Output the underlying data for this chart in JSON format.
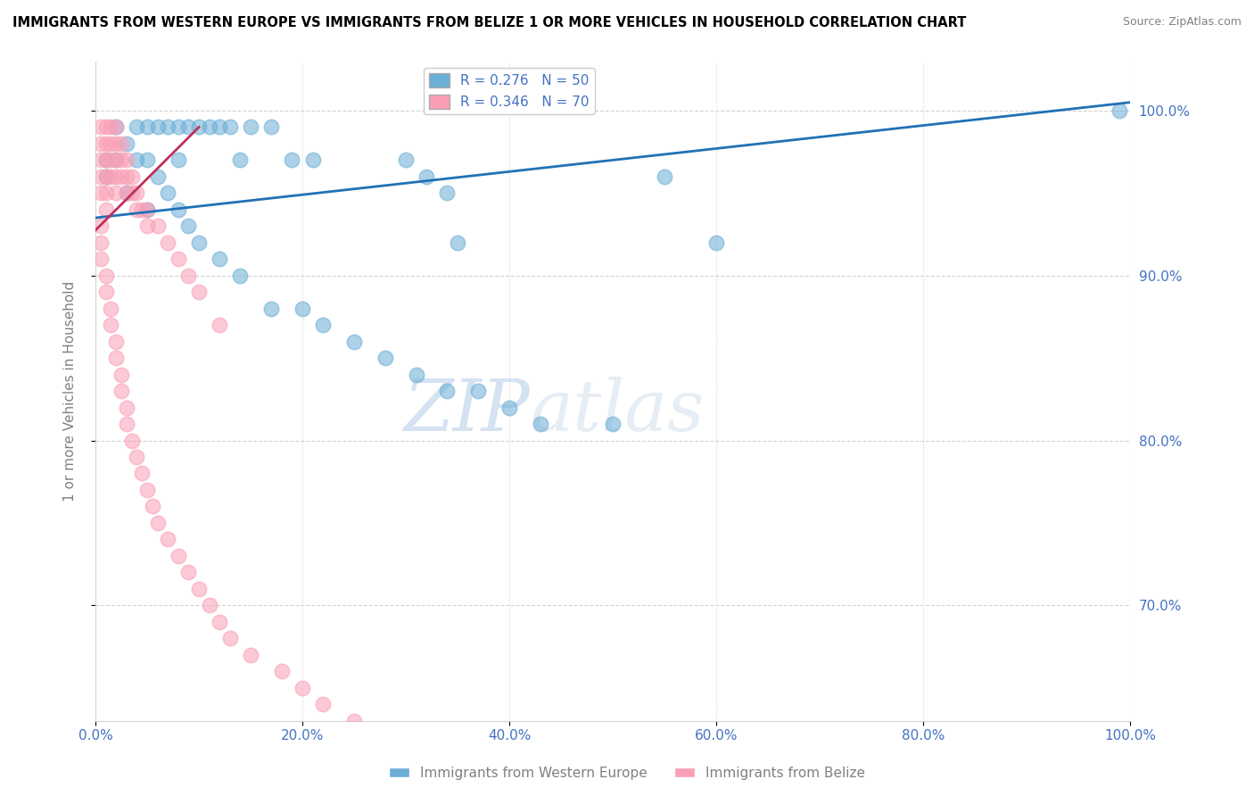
{
  "title": "IMMIGRANTS FROM WESTERN EUROPE VS IMMIGRANTS FROM BELIZE 1 OR MORE VEHICLES IN HOUSEHOLD CORRELATION CHART",
  "source": "Source: ZipAtlas.com",
  "ylabel": "1 or more Vehicles in Household",
  "legend_label1": "Immigrants from Western Europe",
  "legend_label2": "Immigrants from Belize",
  "r1": 0.276,
  "n1": 50,
  "r2": 0.346,
  "n2": 70,
  "color1": "#6baed6",
  "color2": "#fa9fb5",
  "trendline1_color": "#2171b5",
  "trendline2_color": "#c0305a",
  "xlim": [
    0.0,
    1.0
  ],
  "ylim": [
    0.63,
    1.03
  ],
  "xticks": [
    0.0,
    0.2,
    0.4,
    0.6,
    0.8,
    1.0
  ],
  "yticks": [
    0.7,
    0.8,
    0.9,
    1.0
  ],
  "xtick_labels": [
    "0.0%",
    "20.0%",
    "40.0%",
    "60.0%",
    "80.0%",
    "100.0%"
  ],
  "ytick_labels_right": [
    "70.0%",
    "80.0%",
    "90.0%",
    "100.0%"
  ],
  "watermark_zip": "ZIP",
  "watermark_atlas": "atlas",
  "scatter1_x": [
    0.01,
    0.02,
    0.02,
    0.03,
    0.04,
    0.05,
    0.05,
    0.06,
    0.07,
    0.08,
    0.08,
    0.09,
    0.1,
    0.11,
    0.12,
    0.13,
    0.14,
    0.15,
    0.17,
    0.19,
    0.21,
    0.3,
    0.32,
    0.34,
    0.55,
    0.99,
    0.01,
    0.03,
    0.04,
    0.05,
    0.06,
    0.07,
    0.08,
    0.09,
    0.1,
    0.12,
    0.14,
    0.17,
    0.2,
    0.22,
    0.25,
    0.28,
    0.31,
    0.34,
    0.37,
    0.4,
    0.43,
    0.5,
    0.6,
    0.35
  ],
  "scatter1_y": [
    0.97,
    0.99,
    0.97,
    0.98,
    0.99,
    0.99,
    0.97,
    0.99,
    0.99,
    0.99,
    0.97,
    0.99,
    0.99,
    0.99,
    0.99,
    0.99,
    0.97,
    0.99,
    0.99,
    0.97,
    0.97,
    0.97,
    0.96,
    0.95,
    0.96,
    1.0,
    0.96,
    0.95,
    0.97,
    0.94,
    0.96,
    0.95,
    0.94,
    0.93,
    0.92,
    0.91,
    0.9,
    0.88,
    0.88,
    0.87,
    0.86,
    0.85,
    0.84,
    0.83,
    0.83,
    0.82,
    0.81,
    0.81,
    0.92,
    0.92
  ],
  "scatter2_x": [
    0.005,
    0.005,
    0.005,
    0.005,
    0.005,
    0.01,
    0.01,
    0.01,
    0.01,
    0.01,
    0.01,
    0.015,
    0.015,
    0.015,
    0.015,
    0.02,
    0.02,
    0.02,
    0.02,
    0.02,
    0.025,
    0.025,
    0.025,
    0.03,
    0.03,
    0.03,
    0.035,
    0.035,
    0.04,
    0.04,
    0.045,
    0.05,
    0.05,
    0.06,
    0.07,
    0.08,
    0.09,
    0.1,
    0.12,
    0.005,
    0.005,
    0.005,
    0.01,
    0.01,
    0.015,
    0.015,
    0.02,
    0.02,
    0.025,
    0.025,
    0.03,
    0.03,
    0.035,
    0.04,
    0.045,
    0.05,
    0.055,
    0.06,
    0.07,
    0.08,
    0.09,
    0.1,
    0.11,
    0.12,
    0.13,
    0.15,
    0.18,
    0.2,
    0.22,
    0.25
  ],
  "scatter2_y": [
    0.99,
    0.98,
    0.97,
    0.96,
    0.95,
    0.99,
    0.98,
    0.97,
    0.96,
    0.95,
    0.94,
    0.99,
    0.98,
    0.97,
    0.96,
    0.99,
    0.98,
    0.97,
    0.96,
    0.95,
    0.98,
    0.97,
    0.96,
    0.97,
    0.96,
    0.95,
    0.96,
    0.95,
    0.95,
    0.94,
    0.94,
    0.94,
    0.93,
    0.93,
    0.92,
    0.91,
    0.9,
    0.89,
    0.87,
    0.93,
    0.92,
    0.91,
    0.9,
    0.89,
    0.88,
    0.87,
    0.86,
    0.85,
    0.84,
    0.83,
    0.82,
    0.81,
    0.8,
    0.79,
    0.78,
    0.77,
    0.76,
    0.75,
    0.74,
    0.73,
    0.72,
    0.71,
    0.7,
    0.69,
    0.68,
    0.67,
    0.66,
    0.65,
    0.64,
    0.63
  ]
}
